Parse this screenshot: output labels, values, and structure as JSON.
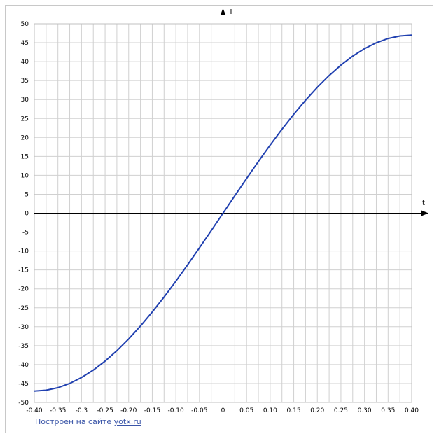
{
  "chart_data": {
    "type": "line",
    "x_label": "t",
    "y_label": "I",
    "x": [
      -0.4,
      -0.375,
      -0.35,
      -0.325,
      -0.3,
      -0.275,
      -0.25,
      -0.225,
      -0.2,
      -0.175,
      -0.15,
      -0.125,
      -0.1,
      -0.075,
      -0.05,
      -0.025,
      0,
      0.025,
      0.05,
      0.075,
      0.1,
      0.125,
      0.15,
      0.175,
      0.2,
      0.225,
      0.25,
      0.275,
      0.3,
      0.325,
      0.35,
      0.375,
      0.4
    ],
    "series": [
      {
        "color": "#2040b0",
        "values": [
          -47,
          -46.77,
          -46.1,
          -44.98,
          -43.42,
          -41.45,
          -39.08,
          -36.33,
          -33.23,
          -29.82,
          -26.11,
          -22.16,
          -17.99,
          -13.64,
          -9.17,
          -4.61,
          0,
          4.61,
          9.17,
          13.64,
          17.99,
          22.16,
          26.11,
          29.82,
          33.23,
          36.33,
          39.08,
          41.45,
          43.42,
          44.98,
          46.1,
          46.77,
          47
        ]
      }
    ],
    "xlim": [
      -0.4,
      0.4
    ],
    "xticks": [
      {
        "value": -0.4,
        "label": "-0.40"
      },
      -0.35,
      -0.3,
      {
        "value": -0.3,
        "label": "-0.30"
      },
      -0.25,
      {
        "value": -0.2,
        "label": "-0.20"
      },
      -0.15,
      {
        "value": -0.1,
        "label": "-0.10"
      },
      -0.05,
      0,
      0.05,
      {
        "value": 0.1,
        "label": "0.10"
      },
      0.15,
      {
        "value": 0.2,
        "label": "0.20"
      },
      0.25,
      {
        "value": 0.3,
        "label": "0.30"
      },
      0.35,
      {
        "value": 0.4,
        "label": "0.40"
      }
    ],
    "ylim": [
      -50,
      50
    ],
    "yticks": [
      -50,
      -45,
      -40,
      -35,
      -30,
      -25,
      -20,
      -15,
      -10,
      -5,
      0,
      5,
      10,
      15,
      20,
      25,
      30,
      35,
      40,
      45,
      50
    ],
    "grid": true
  },
  "footer": {
    "text": "Построен на сайте ",
    "link": "yotx.ru"
  }
}
